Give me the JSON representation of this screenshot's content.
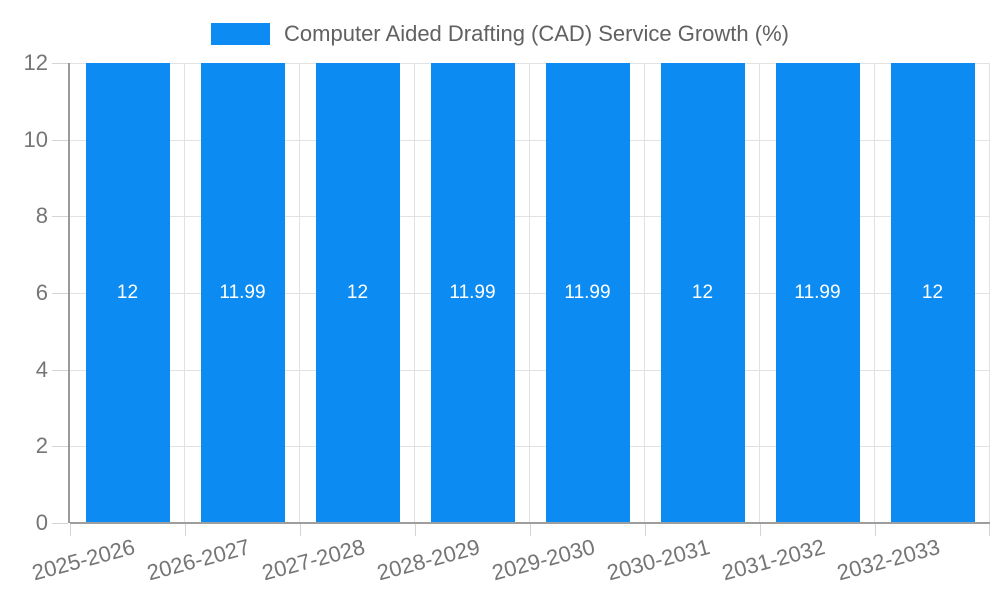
{
  "chart_data": {
    "type": "bar",
    "title": "Computer Aided Drafting (CAD) Service Growth (%)",
    "categories": [
      "2025-2026",
      "2026-2027",
      "2027-2028",
      "2028-2029",
      "2029-2030",
      "2030-2031",
      "2031-2032",
      "2032-2033"
    ],
    "values": [
      12,
      11.99,
      12,
      11.99,
      11.99,
      12,
      11.99,
      12
    ],
    "bar_labels": [
      "12",
      "11.99",
      "12",
      "11.99",
      "11.99",
      "12",
      "11.99",
      "12"
    ],
    "xlabel": "",
    "ylabel": "",
    "ylim": [
      0,
      12
    ],
    "yticks": [
      0,
      2,
      4,
      6,
      8,
      10,
      12
    ],
    "grid": true,
    "legend_position": "top",
    "colors": {
      "bar": "#0c8cf2",
      "bar_value_text": "#ffffff",
      "axis_text": "#757575",
      "legend_text": "#616161",
      "gridline": "#e2e2e2",
      "axis_line": "#9e9e9e",
      "tick": "#d4d4d4",
      "background": "#ffffff"
    }
  }
}
